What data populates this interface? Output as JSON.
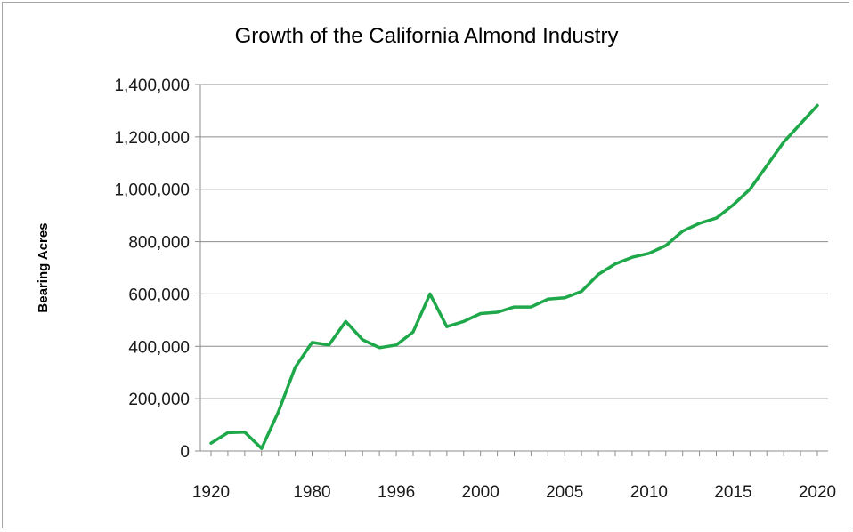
{
  "colors": {
    "line": "#1ea84a",
    "grid": "#8c8c8c",
    "axis": "#8c8c8c",
    "border": "#a6a6a6"
  },
  "chart_data": {
    "type": "line",
    "title": "Growth of the California Almond Industry",
    "xlabel": "",
    "ylabel": "Bearing Acres",
    "ylim": [
      0,
      1400000
    ],
    "y_ticks": [
      0,
      200000,
      400000,
      600000,
      800000,
      1000000,
      1200000,
      1400000
    ],
    "y_tick_labels": [
      "0",
      "200,000",
      "400,000",
      "600,000",
      "800,000",
      "1,000,000",
      "1,200,000",
      "1,400,000"
    ],
    "x_tick_labels": [
      "1920",
      "1980",
      "1996",
      "2000",
      "2005",
      "2010",
      "2015",
      "2020"
    ],
    "x_tick_index": [
      0,
      6,
      11,
      16,
      21,
      26,
      31,
      36
    ],
    "grid": true,
    "legend": "none",
    "series": [
      {
        "name": "Bearing Acres",
        "values": [
          30000,
          70000,
          72000,
          10000,
          150000,
          320000,
          415000,
          405000,
          495000,
          425000,
          395000,
          405000,
          455000,
          600000,
          475000,
          495000,
          525000,
          530000,
          550000,
          550000,
          580000,
          585000,
          610000,
          675000,
          715000,
          740000,
          755000,
          785000,
          840000,
          870000,
          890000,
          940000,
          1000000,
          1090000,
          1180000,
          1250000,
          1320000
        ]
      }
    ]
  }
}
